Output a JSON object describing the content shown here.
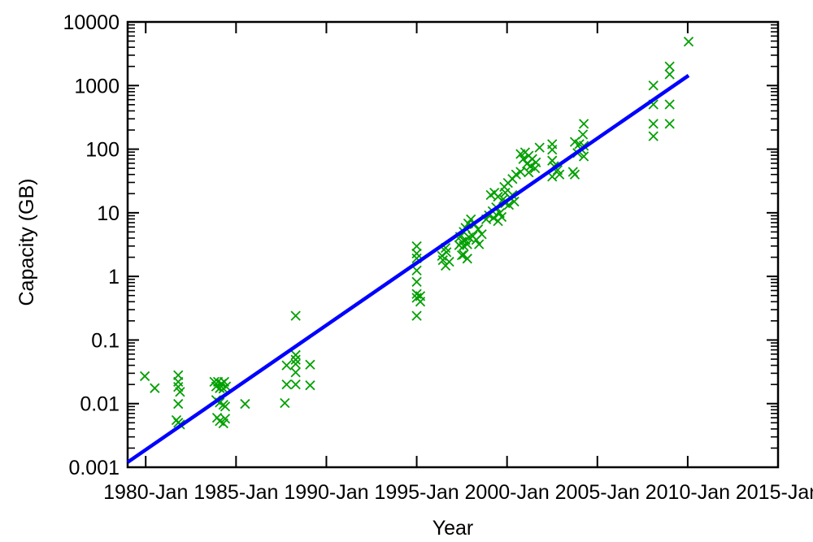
{
  "figure": {
    "background": "#ffffff"
  },
  "chart_data": {
    "type": "scatter",
    "title": "",
    "xlabel": "Year",
    "ylabel": "Capacity (GB)",
    "grid": false,
    "legend": "none",
    "colors": {
      "axis": "#000000",
      "points": "#00A000",
      "line": "#0000FF"
    },
    "x_axis": {
      "min": 1979,
      "max": 2015,
      "ticks": [
        1980,
        1985,
        1990,
        1995,
        2000,
        2005,
        2010,
        2015
      ],
      "tick_suffix": "-Jan"
    },
    "y_axis": {
      "scale": "log",
      "min": 0.001,
      "max": 10000,
      "ticks": [
        0.001,
        0.01,
        0.1,
        1,
        10,
        100,
        1000,
        10000
      ],
      "tick_labels": [
        "0.001",
        "0.01",
        "0.1",
        "1",
        "10",
        "100",
        "1000",
        "10000"
      ]
    },
    "series": [
      {
        "name": "drive-capacity-points",
        "type": "scatter",
        "marker": "x",
        "color": "#00A000",
        "points": [
          [
            1979.95,
            0.027
          ],
          [
            1980.5,
            0.0175
          ],
          [
            1981.8,
            0.028
          ],
          [
            1981.8,
            0.022
          ],
          [
            1981.8,
            0.0183
          ],
          [
            1981.9,
            0.0153
          ],
          [
            1981.8,
            0.0099
          ],
          [
            1981.7,
            0.0055
          ],
          [
            1981.8,
            0.005
          ],
          [
            1981.9,
            0.0047
          ],
          [
            1983.8,
            0.022
          ],
          [
            1984.0,
            0.022
          ],
          [
            1984.2,
            0.0205
          ],
          [
            1984.35,
            0.022
          ],
          [
            1983.9,
            0.0186
          ],
          [
            1984.1,
            0.0175
          ],
          [
            1984.3,
            0.0172
          ],
          [
            1984.45,
            0.0186
          ],
          [
            1983.9,
            0.0114
          ],
          [
            1984.1,
            0.0104
          ],
          [
            1984.3,
            0.0096
          ],
          [
            1984.4,
            0.009
          ],
          [
            1983.95,
            0.006
          ],
          [
            1984.1,
            0.0053
          ],
          [
            1984.3,
            0.0049
          ],
          [
            1984.4,
            0.0058
          ],
          [
            1985.5,
            0.0099
          ],
          [
            1988.3,
            0.24
          ],
          [
            1988.3,
            0.058
          ],
          [
            1988.3,
            0.049
          ],
          [
            1987.8,
            0.04
          ],
          [
            1988.3,
            0.042
          ],
          [
            1989.1,
            0.041
          ],
          [
            1988.3,
            0.031
          ],
          [
            1987.8,
            0.02
          ],
          [
            1988.3,
            0.02
          ],
          [
            1989.1,
            0.0194
          ],
          [
            1987.7,
            0.0102
          ],
          [
            1995.0,
            2.98
          ],
          [
            1995.0,
            2.29
          ],
          [
            1995.0,
            1.92
          ],
          [
            1995.0,
            1.24
          ],
          [
            1995.0,
            0.82
          ],
          [
            1995.0,
            0.53
          ],
          [
            1995.0,
            0.46
          ],
          [
            1995.0,
            0.24
          ],
          [
            1995.2,
            0.49
          ],
          [
            1995.2,
            0.4
          ],
          [
            1996.6,
            2.8
          ],
          [
            1996.65,
            2.4
          ],
          [
            1996.4,
            2.1
          ],
          [
            1996.45,
            1.8
          ],
          [
            1996.8,
            1.7
          ],
          [
            1996.6,
            1.47
          ],
          [
            1997.5,
            2.15
          ],
          [
            1997.4,
            4.2
          ],
          [
            1997.6,
            5.0
          ],
          [
            1997.7,
            5.8
          ],
          [
            1997.85,
            6.8
          ],
          [
            1998.0,
            7.9
          ],
          [
            1998.2,
            6.6
          ],
          [
            1998.4,
            5.5
          ],
          [
            1998.6,
            4.6
          ],
          [
            1997.5,
            3.5
          ],
          [
            1997.7,
            3.75
          ],
          [
            1997.9,
            4.1
          ],
          [
            1998.1,
            4.3
          ],
          [
            1998.3,
            3.75
          ],
          [
            1998.45,
            3.2
          ],
          [
            1997.6,
            3.0
          ],
          [
            1997.8,
            3.2
          ],
          [
            1997.35,
            3.1
          ],
          [
            1997.6,
            2.2
          ],
          [
            1997.8,
            1.9
          ],
          [
            1998.85,
            7.9
          ],
          [
            1999.0,
            9.1
          ],
          [
            1999.2,
            10.6
          ],
          [
            1999.4,
            12.2
          ],
          [
            1999.6,
            9.9
          ],
          [
            1999.25,
            8.3
          ],
          [
            1999.5,
            7.4
          ],
          [
            1999.7,
            8.6
          ],
          [
            1999.1,
            19
          ],
          [
            1999.3,
            20.7
          ],
          [
            1999.5,
            17.9
          ],
          [
            1999.85,
            25.5
          ],
          [
            2000.05,
            29.5
          ],
          [
            2000.3,
            34
          ],
          [
            2000.5,
            40
          ],
          [
            2000.75,
            44
          ],
          [
            1999.9,
            20.7
          ],
          [
            2000.15,
            17.4
          ],
          [
            2000.4,
            15
          ],
          [
            1999.9,
            14.1
          ],
          [
            1999.8,
            16.4
          ],
          [
            2000.1,
            13.3
          ],
          [
            2000.3,
            19
          ],
          [
            2000.75,
            84
          ],
          [
            2001.0,
            89
          ],
          [
            2001.2,
            79
          ],
          [
            2001.4,
            70
          ],
          [
            2001.6,
            62
          ],
          [
            2000.9,
            70
          ],
          [
            2001.1,
            59
          ],
          [
            2001.3,
            54
          ],
          [
            2001.8,
            106
          ],
          [
            2001.55,
            50
          ],
          [
            2001.2,
            43
          ],
          [
            2002.5,
            120
          ],
          [
            2002.5,
            98
          ],
          [
            2002.5,
            66
          ],
          [
            2002.6,
            54
          ],
          [
            2002.8,
            47
          ],
          [
            2002.9,
            40
          ],
          [
            2002.5,
            37
          ],
          [
            2004.25,
            250
          ],
          [
            2004.2,
            170
          ],
          [
            2003.75,
            130
          ],
          [
            2004.0,
            120
          ],
          [
            2004.25,
            113
          ],
          [
            2004.1,
            100
          ],
          [
            2003.9,
            87
          ],
          [
            2004.25,
            77
          ],
          [
            2003.65,
            44
          ],
          [
            2003.75,
            40
          ],
          [
            2008.1,
            1000
          ],
          [
            2008.1,
            505
          ],
          [
            2009.0,
            505
          ],
          [
            2008.1,
            250
          ],
          [
            2009.0,
            250
          ],
          [
            2008.1,
            160
          ],
          [
            2009.0,
            2000
          ],
          [
            2009.0,
            1500
          ],
          [
            2010.05,
            4900
          ]
        ]
      },
      {
        "name": "exponential-fit-line",
        "type": "line",
        "color": "#0000FF",
        "points": [
          [
            1979.0,
            0.0012
          ],
          [
            2010.05,
            1440
          ]
        ]
      }
    ]
  }
}
